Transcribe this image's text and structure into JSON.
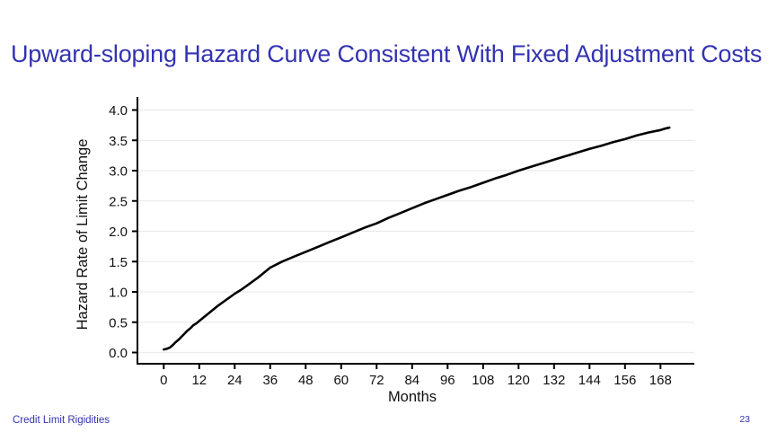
{
  "slide": {
    "title": "Upward-sloping Hazard Curve Consistent With Fixed Adjustment Costs",
    "title_color": "#3333b2",
    "footer_left": "Credit Limit Rigidities",
    "page_number": "23"
  },
  "chart_data": {
    "type": "line",
    "title": "",
    "xlabel": "Months",
    "ylabel": "Hazard Rate of Limit Change",
    "x_ticks": [
      0,
      12,
      24,
      36,
      48,
      60,
      72,
      84,
      96,
      108,
      120,
      132,
      144,
      156,
      168
    ],
    "y_ticks": [
      0.0,
      0.5,
      1.0,
      1.5,
      2.0,
      2.5,
      3.0,
      3.5,
      4.0
    ],
    "xlim": [
      -9,
      180
    ],
    "ylim": [
      -0.2,
      4.2
    ],
    "grid": "horizontal",
    "legend": "none",
    "colors": {
      "line": "#000000",
      "axis": "#000000",
      "tick_text": "#111111",
      "gridline": "#ebebeb"
    },
    "series": [
      {
        "name": "hazard_rate",
        "points": [
          [
            0,
            0.05
          ],
          [
            1,
            0.06
          ],
          [
            2,
            0.08
          ],
          [
            3,
            0.12
          ],
          [
            4,
            0.17
          ],
          [
            5,
            0.21
          ],
          [
            6,
            0.26
          ],
          [
            7,
            0.31
          ],
          [
            8,
            0.36
          ],
          [
            9,
            0.4
          ],
          [
            10,
            0.45
          ],
          [
            11,
            0.48
          ],
          [
            12,
            0.52
          ],
          [
            14,
            0.6
          ],
          [
            16,
            0.68
          ],
          [
            18,
            0.76
          ],
          [
            20,
            0.83
          ],
          [
            22,
            0.9
          ],
          [
            24,
            0.97
          ],
          [
            26,
            1.03
          ],
          [
            28,
            1.1
          ],
          [
            30,
            1.17
          ],
          [
            32,
            1.24
          ],
          [
            34,
            1.32
          ],
          [
            36,
            1.4
          ],
          [
            40,
            1.5
          ],
          [
            44,
            1.58
          ],
          [
            48,
            1.66
          ],
          [
            52,
            1.74
          ],
          [
            56,
            1.82
          ],
          [
            60,
            1.9
          ],
          [
            64,
            1.98
          ],
          [
            68,
            2.06
          ],
          [
            72,
            2.13
          ],
          [
            76,
            2.22
          ],
          [
            80,
            2.3
          ],
          [
            84,
            2.38
          ],
          [
            88,
            2.46
          ],
          [
            92,
            2.53
          ],
          [
            96,
            2.6
          ],
          [
            100,
            2.67
          ],
          [
            104,
            2.73
          ],
          [
            108,
            2.8
          ],
          [
            112,
            2.87
          ],
          [
            116,
            2.93
          ],
          [
            120,
            3.0
          ],
          [
            124,
            3.06
          ],
          [
            128,
            3.12
          ],
          [
            132,
            3.18
          ],
          [
            136,
            3.24
          ],
          [
            140,
            3.3
          ],
          [
            144,
            3.36
          ],
          [
            148,
            3.41
          ],
          [
            152,
            3.47
          ],
          [
            156,
            3.52
          ],
          [
            160,
            3.58
          ],
          [
            164,
            3.63
          ],
          [
            168,
            3.67
          ],
          [
            170,
            3.7
          ],
          [
            171,
            3.71
          ]
        ]
      }
    ]
  }
}
